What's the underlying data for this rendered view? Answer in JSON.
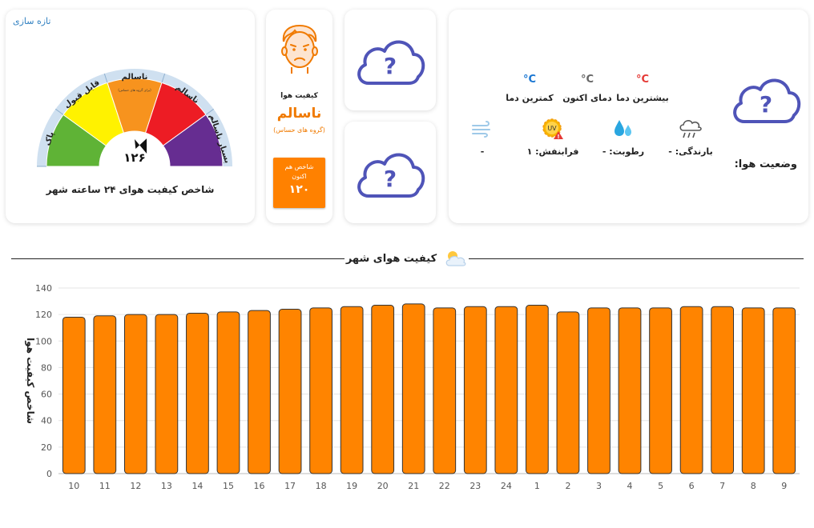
{
  "weather": {
    "status_label": "وضعیت هوا:",
    "temps": [
      {
        "value": "C°",
        "label": "بیشترین دما",
        "color": "#e53935"
      },
      {
        "value": "C°",
        "label": "دمای اکنون",
        "color": "#666666"
      },
      {
        "value": "C°",
        "label": "کمترین دما",
        "color": "#1976d2"
      }
    ],
    "stats": [
      {
        "icon": "rain-cloud-icon",
        "label": "بارندگی: -"
      },
      {
        "icon": "humidity-drops-icon",
        "label": "رطوبت: -"
      },
      {
        "icon": "uv-sun-icon",
        "label": "فرابنفش: ۱",
        "badge": "UV"
      },
      {
        "icon": "wind-icon",
        "label": "-"
      }
    ]
  },
  "aqi": {
    "caption": "کیفیت هوا",
    "status": "ناسالم",
    "group": "(گروه های حساس)",
    "box_label": "شاخص هم اکنون",
    "box_value": "۱۲۰"
  },
  "gauge": {
    "refresh": "تازه سازی",
    "value_label": "۱۲۶",
    "value": 126,
    "max": 200,
    "title": "شاخص کیفیت هوای ۲۴ ساعته شهر",
    "segments": [
      {
        "label": "پاک",
        "color": "#5fb336"
      },
      {
        "label": "قابل قبول",
        "color": "#fff200"
      },
      {
        "label": "ناسالم",
        "color": "#f7931e"
      },
      {
        "label": "ناسالم",
        "color": "#ed1c24"
      },
      {
        "label": "بسیار ناسالم",
        "color": "#662d91"
      }
    ],
    "sub_label": "(برای گروه های حساس)"
  },
  "section": {
    "title": "کیفیت هوای شهر"
  },
  "chart_data": {
    "type": "bar",
    "categories": [
      "10",
      "11",
      "12",
      "13",
      "14",
      "15",
      "16",
      "17",
      "18",
      "19",
      "20",
      "21",
      "22",
      "23",
      "24",
      "1",
      "2",
      "3",
      "4",
      "5",
      "6",
      "7",
      "8",
      "9"
    ],
    "values": [
      118,
      119,
      120,
      120,
      121,
      122,
      123,
      124,
      125,
      126,
      127,
      128,
      125,
      126,
      126,
      127,
      122,
      125,
      125,
      125,
      126,
      126,
      125,
      125
    ],
    "ylabel": "شاخص کیفیت هوا",
    "ylim": [
      0,
      140
    ],
    "yticks": [
      0,
      20,
      40,
      60,
      80,
      100,
      120,
      140
    ],
    "bar_color": "#ff8400",
    "grid": true
  }
}
